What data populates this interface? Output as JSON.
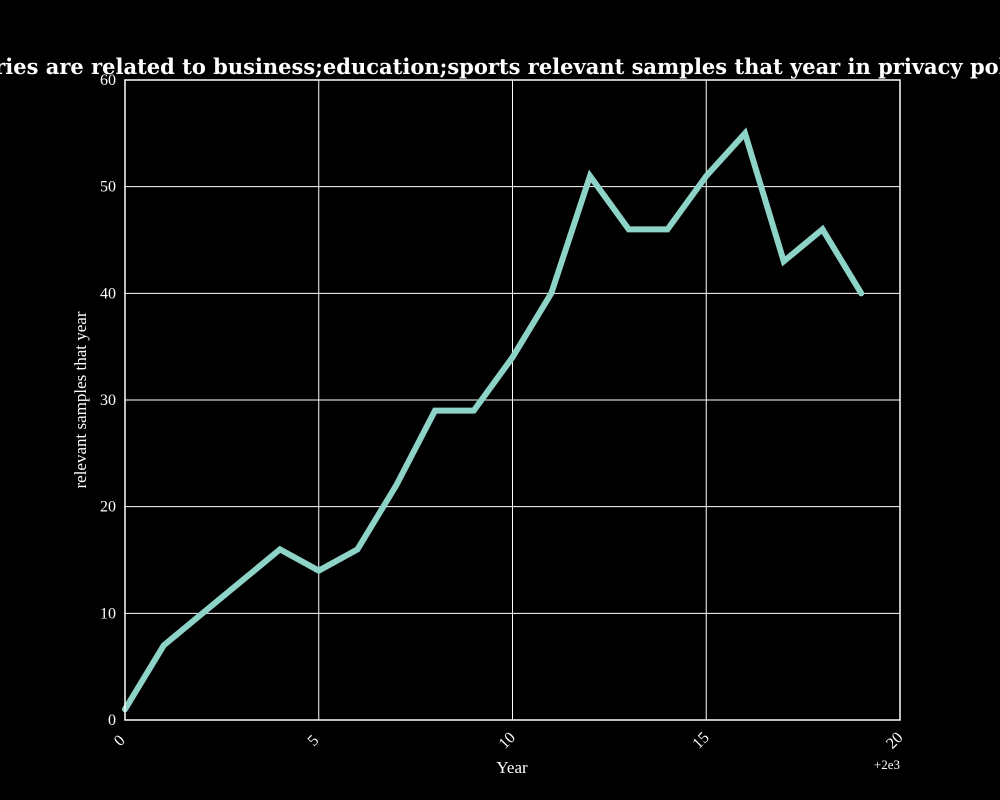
{
  "chart_data": {
    "type": "line",
    "title": "when categories are related to business;education;sports relevant samples that year in privacy policies by Year",
    "xlabel": "Year",
    "ylabel": "relevant samples that year",
    "x_offset_label": "+2e3",
    "xlim": [
      0,
      20
    ],
    "ylim": [
      0,
      60
    ],
    "xticks": [
      0,
      5,
      10,
      15,
      20
    ],
    "yticks": [
      0,
      10,
      20,
      30,
      40,
      50,
      60
    ],
    "grid": true,
    "line_color": "#8dd3c7",
    "background": "#000000",
    "series": [
      {
        "x": [
          0,
          1,
          2,
          3,
          4,
          5,
          6,
          7,
          8,
          9,
          10,
          11,
          12,
          13,
          14,
          15,
          16,
          17,
          18,
          19
        ],
        "values": [
          1,
          7,
          10,
          13,
          16,
          14,
          16,
          22,
          29,
          29,
          34,
          40,
          51,
          46,
          46,
          51,
          55,
          43,
          46,
          40
        ]
      }
    ]
  }
}
